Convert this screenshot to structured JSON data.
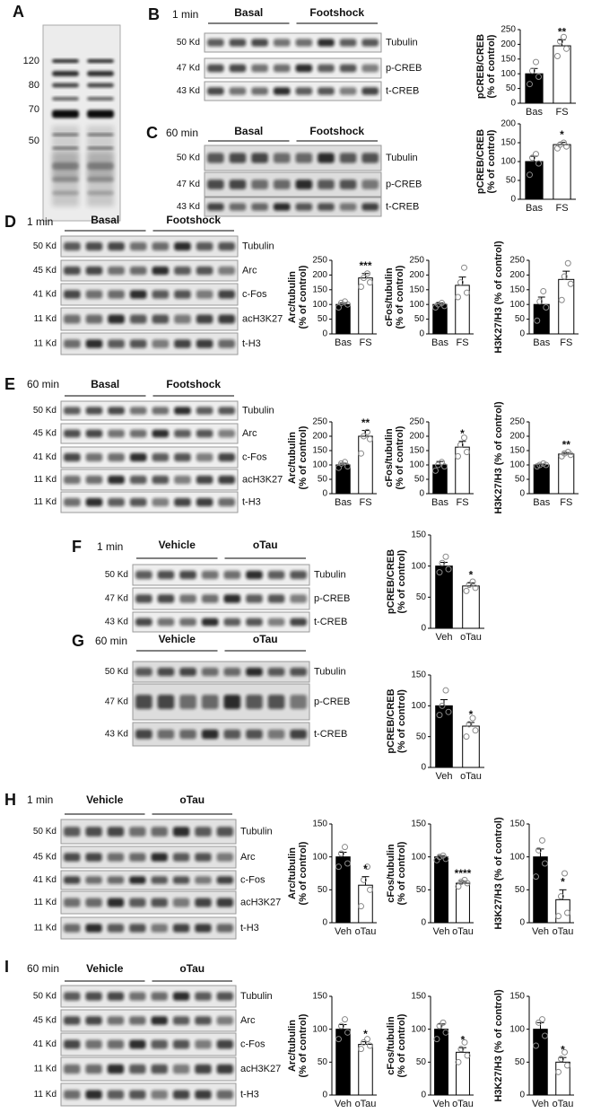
{
  "panel_a": {
    "letter": "A",
    "markers": [
      120,
      80,
      70,
      50
    ]
  },
  "blots": [
    {
      "letter": "B",
      "time": "1 min",
      "groups": [
        "Basal",
        "Footshock"
      ],
      "rows": [
        {
          "kd": "50 Kd",
          "protein": "Tubulin"
        },
        {
          "kd": "47 Kd",
          "protein": "p-CREB"
        },
        {
          "kd": "43 Kd",
          "protein": "t-CREB"
        }
      ]
    },
    {
      "letter": "C",
      "time": "60 min",
      "groups": [
        "Basal",
        "Footshock"
      ],
      "rows": [
        {
          "kd": "50 Kd",
          "protein": "Tubulin"
        },
        {
          "kd": "47 Kd",
          "protein": "p-CREB"
        },
        {
          "kd": "43 Kd",
          "protein": "t-CREB"
        }
      ]
    },
    {
      "letter": "D",
      "time": "1 min",
      "groups": [
        "Basal",
        "Footshock"
      ],
      "rows": [
        {
          "kd": "50 Kd",
          "protein": "Tubulin"
        },
        {
          "kd": "45 Kd",
          "protein": "Arc"
        },
        {
          "kd": "41 Kd",
          "protein": "c-Fos"
        },
        {
          "kd": "11 Kd",
          "protein": "acH3K27"
        },
        {
          "kd": "11 Kd",
          "protein": "t-H3"
        }
      ]
    },
    {
      "letter": "E",
      "time": "60 min",
      "groups": [
        "Basal",
        "Footshock"
      ],
      "rows": [
        {
          "kd": "50 Kd",
          "protein": "Tubulin"
        },
        {
          "kd": "45 Kd",
          "protein": "Arc"
        },
        {
          "kd": "41 Kd",
          "protein": "c-Fos"
        },
        {
          "kd": "11 Kd",
          "protein": "acH3K27"
        },
        {
          "kd": "11 Kd",
          "protein": "t-H3"
        }
      ]
    },
    {
      "letter": "F",
      "time": "1 min",
      "groups": [
        "Vehicle",
        "oTau"
      ],
      "rows": [
        {
          "kd": "50 Kd",
          "protein": "Tubulin"
        },
        {
          "kd": "47 Kd",
          "protein": "p-CREB"
        },
        {
          "kd": "43 Kd",
          "protein": "t-CREB"
        }
      ]
    },
    {
      "letter": "G",
      "time": "60 min",
      "groups": [
        "Vehicle",
        "oTau"
      ],
      "rows": [
        {
          "kd": "50 Kd",
          "protein": "Tubulin"
        },
        {
          "kd": "47 Kd",
          "protein": "p-CREB"
        },
        {
          "kd": "43 Kd",
          "protein": "t-CREB"
        }
      ]
    },
    {
      "letter": "H",
      "time": "1 min",
      "groups": [
        "Vehicle",
        "oTau"
      ],
      "rows": [
        {
          "kd": "50 Kd",
          "protein": "Tubulin"
        },
        {
          "kd": "45 Kd",
          "protein": "Arc"
        },
        {
          "kd": "41 Kd",
          "protein": "c-Fos"
        },
        {
          "kd": "11 Kd",
          "protein": "acH3K27"
        },
        {
          "kd": "11 Kd",
          "protein": "t-H3"
        }
      ]
    },
    {
      "letter": "I",
      "time": "60 min",
      "groups": [
        "Vehicle",
        "oTau"
      ],
      "rows": [
        {
          "kd": "50 Kd",
          "protein": "Tubulin"
        },
        {
          "kd": "45 Kd",
          "protein": "Arc"
        },
        {
          "kd": "41 Kd",
          "protein": "c-Fos"
        },
        {
          "kd": "11 Kd",
          "protein": "acH3K27"
        },
        {
          "kd": "11 Kd",
          "protein": "t-H3"
        }
      ]
    }
  ],
  "chart_data": [
    {
      "type": "bar",
      "ylabel": [
        "pCREB/CREB",
        "(% of control)"
      ],
      "categories": [
        "Bas",
        "FS"
      ],
      "values": [
        100,
        195
      ],
      "errors": [
        18,
        20
      ],
      "points": [
        [
          65,
          90,
          110,
          140
        ],
        [
          160,
          185,
          210,
          225
        ]
      ],
      "colors": [
        "#000000",
        "#ffffff"
      ],
      "ylim": [
        0,
        250
      ],
      "yticks": [
        0,
        50,
        100,
        150,
        200,
        250
      ],
      "significance": "**"
    },
    {
      "type": "bar",
      "ylabel": [
        "pCREB/CREB",
        "(% of control)"
      ],
      "categories": [
        "Bas",
        "FS"
      ],
      "values": [
        100,
        145
      ],
      "errors": [
        14,
        6
      ],
      "points": [
        [
          65,
          95,
          110,
          120
        ],
        [
          135,
          140,
          145,
          150
        ]
      ],
      "colors": [
        "#000000",
        "#ffffff"
      ],
      "ylim": [
        0,
        200
      ],
      "yticks": [
        0,
        50,
        100,
        150,
        200
      ],
      "significance": "*"
    },
    {
      "type": "bar",
      "ylabel": [
        "Arc/tubulin",
        "(% of control)"
      ],
      "categories": [
        "Bas",
        "FS"
      ],
      "values": [
        100,
        190
      ],
      "errors": [
        5,
        15
      ],
      "points": [
        [
          90,
          100,
          105,
          110
        ],
        [
          160,
          175,
          190,
          205
        ]
      ],
      "colors": [
        "#000000",
        "#ffffff"
      ],
      "ylim": [
        0,
        250
      ],
      "yticks": [
        0,
        50,
        100,
        150,
        200,
        250
      ],
      "significance": "***"
    },
    {
      "type": "bar",
      "ylabel": [
        "cFos/tubulin",
        "(% of control)"
      ],
      "categories": [
        "Bas",
        "FS"
      ],
      "values": [
        100,
        165
      ],
      "errors": [
        5,
        28
      ],
      "points": [
        [
          90,
          95,
          100,
          105
        ],
        [
          125,
          140,
          175,
          225
        ]
      ],
      "colors": [
        "#000000",
        "#ffffff"
      ],
      "ylim": [
        0,
        250
      ],
      "yticks": [
        0,
        50,
        100,
        150,
        200,
        250
      ]
    },
    {
      "type": "bar",
      "ylabel": [
        "H3K27/H3 (% of control)"
      ],
      "categories": [
        "Bas",
        "FS"
      ],
      "values": [
        100,
        185
      ],
      "errors": [
        25,
        28
      ],
      "points": [
        [
          45,
          90,
          110,
          145
        ],
        [
          115,
          170,
          195,
          240
        ]
      ],
      "colors": [
        "#000000",
        "#ffffff"
      ],
      "ylim": [
        0,
        250
      ],
      "yticks": [
        0,
        50,
        100,
        150,
        200,
        250
      ]
    },
    {
      "type": "bar",
      "ylabel": [
        "Arc/tubulin",
        "(% of control)"
      ],
      "categories": [
        "Bas",
        "FS"
      ],
      "values": [
        100,
        200
      ],
      "errors": [
        6,
        20
      ],
      "points": [
        [
          90,
          95,
          105,
          110
        ],
        [
          140,
          190,
          200,
          215
        ]
      ],
      "colors": [
        "#000000",
        "#ffffff"
      ],
      "ylim": [
        0,
        250
      ],
      "yticks": [
        0,
        50,
        100,
        150,
        200,
        250
      ],
      "significance": "**"
    },
    {
      "type": "bar",
      "ylabel": [
        "cFos/tubulin",
        "(% of control)"
      ],
      "categories": [
        "Bas",
        "FS"
      ],
      "values": [
        100,
        162
      ],
      "errors": [
        12,
        20
      ],
      "points": [
        [
          80,
          95,
          100,
          110
        ],
        [
          130,
          145,
          170,
          195
        ]
      ],
      "colors": [
        "#000000",
        "#ffffff"
      ],
      "ylim": [
        0,
        250
      ],
      "yticks": [
        0,
        50,
        100,
        150,
        200,
        250
      ],
      "significance": "*"
    },
    {
      "type": "bar",
      "ylabel": [
        "H3K27/H3 (% of control)"
      ],
      "categories": [
        "Bas",
        "FS"
      ],
      "values": [
        100,
        138
      ],
      "errors": [
        3,
        5
      ],
      "points": [
        [
          95,
          100,
          100,
          105
        ],
        [
          130,
          135,
          140,
          145
        ]
      ],
      "colors": [
        "#000000",
        "#ffffff"
      ],
      "ylim": [
        0,
        250
      ],
      "yticks": [
        0,
        50,
        100,
        150,
        200,
        250
      ],
      "significance": "**"
    },
    {
      "type": "bar",
      "ylabel": [
        "pCREB/CREB",
        "(% of control)"
      ],
      "categories": [
        "Veh",
        "oTau"
      ],
      "values": [
        100,
        68
      ],
      "errors": [
        6,
        5
      ],
      "points": [
        [
          90,
          95,
          105,
          115
        ],
        [
          60,
          65,
          70,
          75
        ]
      ],
      "colors": [
        "#000000",
        "#ffffff"
      ],
      "ylim": [
        0,
        150
      ],
      "yticks": [
        0,
        50,
        100,
        150
      ],
      "significance": "*"
    },
    {
      "type": "bar",
      "ylabel": [
        "pCREB/CREB",
        "(% of control)"
      ],
      "categories": [
        "Veh",
        "oTau"
      ],
      "values": [
        100,
        67
      ],
      "errors": [
        10,
        6
      ],
      "points": [
        [
          85,
          90,
          100,
          125
        ],
        [
          50,
          60,
          70,
          80
        ]
      ],
      "colors": [
        "#000000",
        "#ffffff"
      ],
      "ylim": [
        0,
        150
      ],
      "yticks": [
        0,
        50,
        100,
        150
      ],
      "significance": "*"
    },
    {
      "type": "bar",
      "ylabel": [
        "Arc/tubulin",
        "(% of control)"
      ],
      "categories": [
        "Veh",
        "oTau"
      ],
      "values": [
        100,
        57
      ],
      "errors": [
        7,
        13
      ],
      "points": [
        [
          85,
          90,
          105,
          115
        ],
        [
          25,
          50,
          65,
          85
        ]
      ],
      "colors": [
        "#000000",
        "#ffffff"
      ],
      "ylim": [
        0,
        150
      ],
      "yticks": [
        0,
        50,
        100,
        150
      ],
      "significance": "*"
    },
    {
      "type": "bar",
      "ylabel": [
        "cFos/tubulin",
        "(% of control)"
      ],
      "categories": [
        "Veh",
        "oTau"
      ],
      "values": [
        100,
        60
      ],
      "errors": [
        2,
        3
      ],
      "points": [
        [
          95,
          97,
          100,
          102
        ],
        [
          55,
          60,
          62,
          65
        ]
      ],
      "colors": [
        "#000000",
        "#ffffff"
      ],
      "ylim": [
        0,
        150
      ],
      "yticks": [
        0,
        50,
        100,
        150
      ],
      "significance": "****"
    },
    {
      "type": "bar",
      "ylabel": [
        "H3K27/H3 (% of control)"
      ],
      "categories": [
        "Veh",
        "oTau"
      ],
      "values": [
        100,
        35
      ],
      "errors": [
        12,
        15
      ],
      "points": [
        [
          70,
          90,
          110,
          125
        ],
        [
          10,
          15,
          40,
          75
        ]
      ],
      "colors": [
        "#000000",
        "#ffffff"
      ],
      "ylim": [
        0,
        150
      ],
      "yticks": [
        0,
        50,
        100,
        150
      ],
      "significance": "*"
    },
    {
      "type": "bar",
      "ylabel": [
        "Arc/tubulin",
        "(% of control)"
      ],
      "categories": [
        "Veh",
        "oTau"
      ],
      "values": [
        100,
        77
      ],
      "errors": [
        7,
        4
      ],
      "points": [
        [
          85,
          95,
          105,
          115
        ],
        [
          70,
          75,
          80,
          85
        ]
      ],
      "colors": [
        "#000000",
        "#ffffff"
      ],
      "ylim": [
        0,
        150
      ],
      "yticks": [
        0,
        50,
        100,
        150
      ],
      "significance": "*"
    },
    {
      "type": "bar",
      "ylabel": [
        "cFos/tubulin",
        "(% of control)"
      ],
      "categories": [
        "Veh",
        "oTau"
      ],
      "values": [
        100,
        65
      ],
      "errors": [
        8,
        7
      ],
      "points": [
        [
          85,
          95,
          105,
          110
        ],
        [
          50,
          60,
          70,
          80
        ]
      ],
      "colors": [
        "#000000",
        "#ffffff"
      ],
      "ylim": [
        0,
        150
      ],
      "yticks": [
        0,
        50,
        100,
        150
      ],
      "significance": "*"
    },
    {
      "type": "bar",
      "ylabel": [
        "H3K27/H3 (% of control)"
      ],
      "categories": [
        "Veh",
        "oTau"
      ],
      "values": [
        100,
        50
      ],
      "errors": [
        10,
        7
      ],
      "points": [
        [
          75,
          90,
          110,
          115
        ],
        [
          35,
          45,
          55,
          65
        ]
      ],
      "colors": [
        "#000000",
        "#ffffff"
      ],
      "ylim": [
        0,
        150
      ],
      "yticks": [
        0,
        50,
        100,
        150
      ],
      "significance": "*"
    }
  ]
}
